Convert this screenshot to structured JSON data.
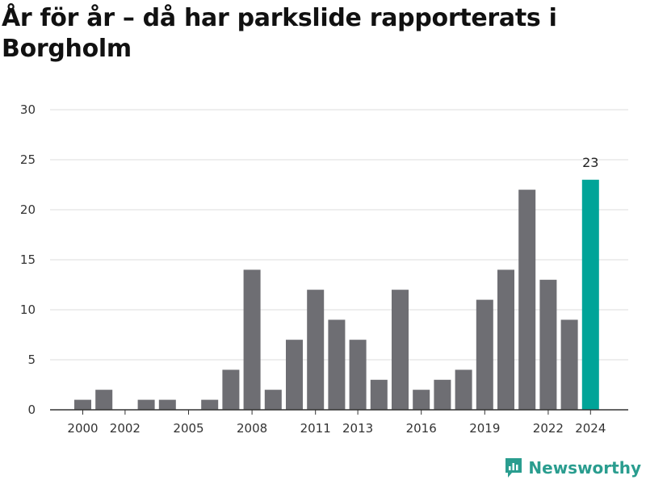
{
  "title": "År för år – då har parkslide rapporterats i Borgholm",
  "brand": {
    "name": "Newsworthy",
    "icon": "newsworthy-logo-icon",
    "color": "#2a9d8f"
  },
  "colors": {
    "bar": "#6e6e73",
    "highlight": "#00a498",
    "grid": "#dddddd",
    "axis": "#333333"
  },
  "chart_data": {
    "type": "bar",
    "title": "År för år – då har parkslide rapporterats i Borgholm",
    "xlabel": "",
    "ylabel": "",
    "x": [
      2000,
      2001,
      2002,
      2003,
      2004,
      2005,
      2006,
      2007,
      2008,
      2009,
      2010,
      2011,
      2012,
      2013,
      2014,
      2015,
      2016,
      2017,
      2018,
      2019,
      2020,
      2021,
      2022,
      2023,
      2024
    ],
    "values": [
      1,
      2,
      0,
      1,
      1,
      0,
      1,
      4,
      14,
      2,
      7,
      12,
      9,
      7,
      3,
      12,
      2,
      3,
      4,
      11,
      14,
      22,
      13,
      9,
      23
    ],
    "x_tick_labels": [
      "2000",
      "2002",
      "2005",
      "2008",
      "2011",
      "2013",
      "2016",
      "2019",
      "2022",
      "2024"
    ],
    "y_ticks": [
      0,
      5,
      10,
      15,
      20,
      25,
      30
    ],
    "ylim": [
      0,
      30
    ],
    "highlight": {
      "year": 2024,
      "label": "23"
    },
    "grid": true
  }
}
